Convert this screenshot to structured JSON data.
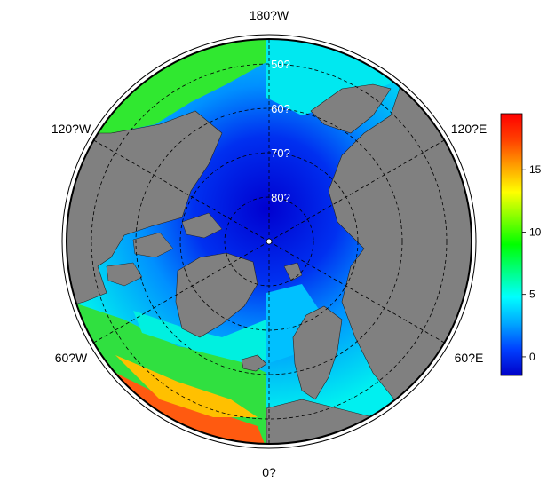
{
  "map": {
    "projection": "north-polar-stereographic",
    "land_color": "#808080",
    "frame_color": "#000000",
    "longitude_labels": {
      "top": "180?W",
      "upper_left": "120?W",
      "upper_right": "120?E",
      "lower_left": "60?W",
      "lower_right": "60?E",
      "bottom": "0?"
    },
    "latitude_labels": [
      "50?",
      "60?",
      "70?",
      "80?"
    ]
  },
  "colorbar": {
    "tick_labels": [
      "0",
      "5",
      "10",
      "15"
    ],
    "tick_values": [
      0,
      5,
      10,
      15
    ],
    "range": [
      -1.5,
      19.5
    ],
    "colors": [
      "#0000c8",
      "#0040ff",
      "#00a8ff",
      "#00ffff",
      "#00ff80",
      "#00ff00",
      "#80ff00",
      "#ffff00",
      "#ffa000",
      "#ff4000",
      "#ff0000"
    ]
  }
}
